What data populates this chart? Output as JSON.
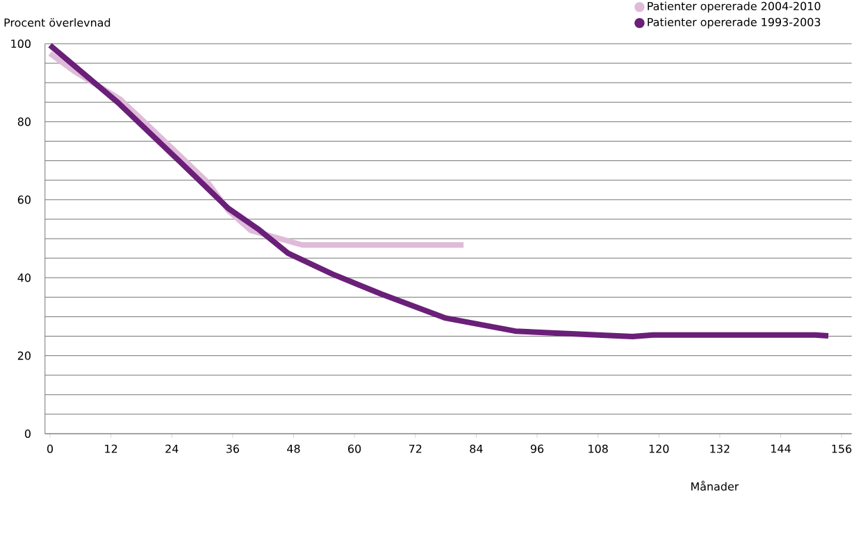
{
  "chart_data": {
    "type": "line",
    "xlabel": "Månader",
    "ylabel": "Procent överlevnad",
    "xlim": [
      -1,
      158
    ],
    "ylim": [
      0,
      100
    ],
    "xticks": [
      0,
      12,
      24,
      36,
      48,
      60,
      72,
      84,
      96,
      108,
      120,
      132,
      144,
      156
    ],
    "yticks": [
      0,
      {
        "value": 5,
        "label": null
      },
      {
        "value": 10,
        "label": null
      },
      {
        "value": 15,
        "label": null
      },
      20,
      {
        "value": 25,
        "label": null
      },
      {
        "value": 30,
        "label": null
      },
      {
        "value": 35,
        "label": null
      },
      40,
      {
        "value": 45,
        "label": null
      },
      {
        "value": 50,
        "label": null
      },
      {
        "value": 55,
        "label": null
      },
      60,
      {
        "value": 65,
        "label": null
      },
      {
        "value": 70,
        "label": null
      },
      {
        "value": 75,
        "label": null
      },
      80,
      {
        "value": 85,
        "label": null
      },
      {
        "value": 90,
        "label": null
      },
      {
        "value": 95,
        "label": null
      },
      100
    ],
    "grid": "y",
    "legend": "top right",
    "marker": "none",
    "line_style": "solid",
    "series": [
      {
        "name": "Patienter opererade 2004-2010",
        "color": "#dfbbd9",
        "x": [
          0,
          4.8,
          13.8,
          19.2,
          31.1,
          35.1,
          39.6,
          49.7,
          81.5
        ],
        "values": [
          97.5,
          92.9,
          85.8,
          79.2,
          64.4,
          57.3,
          52.1,
          48.4,
          48.4
        ]
      },
      {
        "name": "Patienter opererade 1993-2003",
        "color": "#6a1f78",
        "x": [
          0,
          13.4,
          27,
          35.1,
          41,
          46.9,
          55.7,
          65.3,
          77.8,
          91.7,
          114.8,
          118.8,
          150.8,
          153.4
        ],
        "values": [
          99.6,
          84.9,
          68,
          57.8,
          52.5,
          46.3,
          40.9,
          35.8,
          29.7,
          26.3,
          24.9,
          25.3,
          25.3,
          25.1
        ]
      }
    ]
  }
}
